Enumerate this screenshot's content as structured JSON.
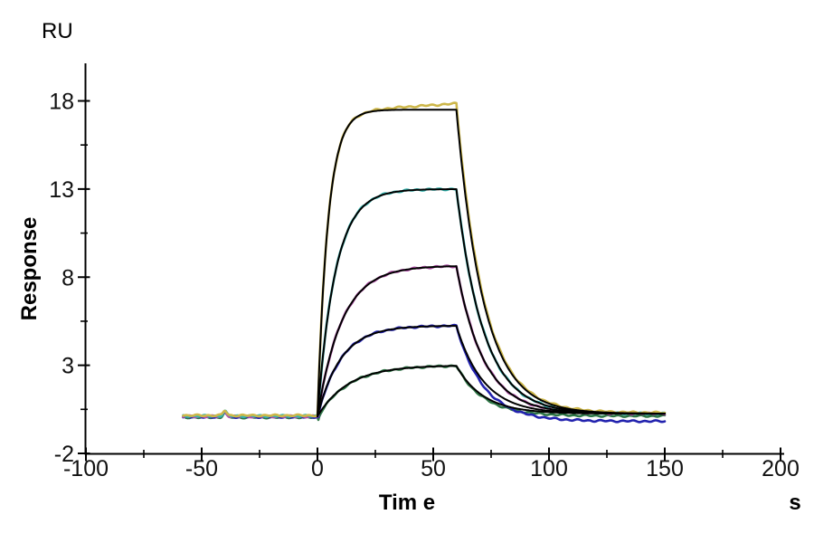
{
  "figure": {
    "background": "#ffffff",
    "axis_color": "#000000"
  },
  "chart_data": {
    "type": "line",
    "title": "",
    "description": "SPR sensorgram: five concentration traces (colored) overlaid with black 1:1 binding kinetic fit curves; baseline from -58 s, association 0-60 s, dissociation 60-150 s",
    "xlabel": "Tim e",
    "x_unit": "s",
    "ylabel": "Response",
    "y_unit": "RU",
    "xlim": [
      -100,
      200
    ],
    "ylim": [
      -2,
      18
    ],
    "grid": false,
    "legend": "none",
    "x_major_ticks": [
      -100,
      -50,
      0,
      50,
      100,
      150,
      200
    ],
    "y_major_ticks": [
      18,
      13,
      8,
      3,
      -2
    ],
    "has_minor_ticks": true,
    "phases": {
      "baseline_start_s": -58,
      "association_start_s": 0,
      "dissociation_start_s": 60,
      "end_s": 150,
      "baseline_ru": 0.1,
      "baseline_spike_at_s": -40
    },
    "sample_times_s": [
      0,
      10,
      20,
      30,
      40,
      50,
      60,
      75,
      90,
      120,
      150
    ],
    "series": [
      {
        "id": "yellow",
        "color": "#CDB74A",
        "plateau_ru": 17.5,
        "k_obs_per_s": 0.22,
        "drift_ru": 0.35,
        "tail_ru": 0.3,
        "base_offset_ru": 0.055,
        "response_ru": [
          0.1,
          15.6,
          17.3,
          17.4,
          17.5,
          17.5,
          17.9,
          5.1,
          1.6,
          0.4,
          0.3
        ]
      },
      {
        "id": "cyan",
        "color": "#35B6B0",
        "plateau_ru": 13.0,
        "k_obs_per_s": 0.13,
        "drift_ru": 0,
        "tail_ru": 0.25,
        "base_offset_ru": 0.025,
        "response_ru": [
          0.1,
          9.5,
          12.0,
          12.7,
          12.9,
          13.0,
          13.0,
          3.8,
          1.2,
          0.3,
          0.3
        ]
      },
      {
        "id": "magenta",
        "color": "#B14FA8",
        "plateau_ru": 8.65,
        "k_obs_per_s": 0.095,
        "drift_ru": 0,
        "tail_ru": 0.25,
        "base_offset_ru": 0,
        "response_ru": [
          0.1,
          5.3,
          7.4,
          8.2,
          8.5,
          8.6,
          8.6,
          2.7,
          0.9,
          0.3,
          0.3
        ]
      },
      {
        "id": "blue",
        "color": "#2222AE",
        "plateau_ru": 5.25,
        "k_obs_per_s": 0.1,
        "drift_ru": 0,
        "tail_ru": -0.18,
        "base_offset_ru": -0.03,
        "response_ru": [
          0.1,
          3.3,
          4.6,
          5.0,
          5.2,
          5.2,
          5.2,
          1.7,
          0.6,
          0.3,
          -0.2
        ]
      },
      {
        "id": "green",
        "color": "#2E7646",
        "plateau_ru": 3.0,
        "k_obs_per_s": 0.075,
        "drift_ru": 0,
        "tail_ru": 0.12,
        "base_offset_ru": -0.055,
        "response_ru": [
          0.1,
          1.6,
          2.3,
          2.7,
          2.9,
          3.0,
          3.0,
          0.9,
          0.4,
          0.3,
          0.3
        ]
      }
    ],
    "fit": {
      "color": "#000000",
      "k_d_per_s": 0.085,
      "tail_ru": 0.25
    }
  }
}
